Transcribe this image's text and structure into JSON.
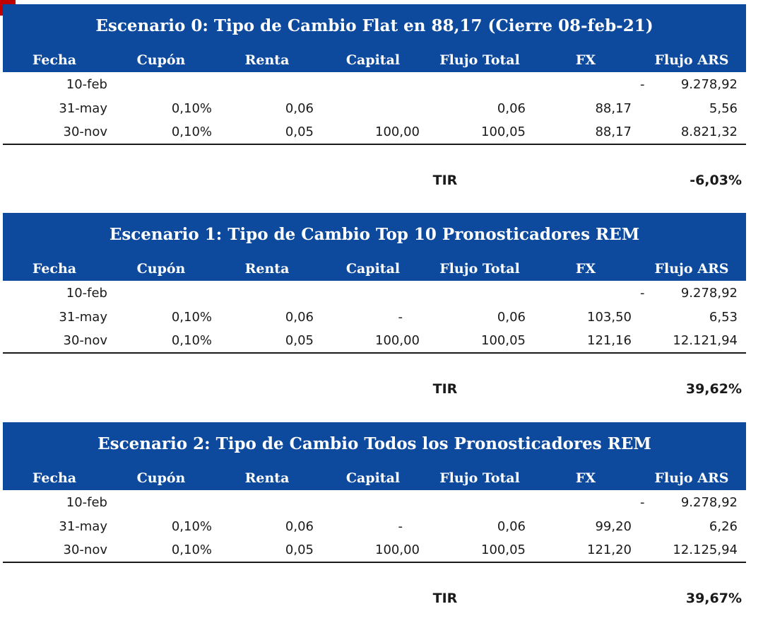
{
  "columns": [
    "Fecha",
    "Cupón",
    "Renta",
    "Capital",
    "Flujo Total",
    "FX",
    "Flujo ARS"
  ],
  "tir_label": "TIR",
  "scenarios": [
    {
      "title": "Escenario 0: Tipo de Cambio Flat en 88,17 (Cierre 08-feb-21)",
      "rows": [
        {
          "fecha": "10-feb",
          "cupon": "",
          "renta": "",
          "capital": "",
          "flujo_total": "",
          "fx": "",
          "ars_sign": "-",
          "flujo_ars": "9.278,92"
        },
        {
          "fecha": "31-may",
          "cupon": "0,10%",
          "renta": "0,06",
          "capital": "",
          "flujo_total": "0,06",
          "fx": "88,17",
          "ars_sign": "",
          "flujo_ars": "5,56"
        },
        {
          "fecha": "30-nov",
          "cupon": "0,10%",
          "renta": "0,05",
          "capital": "100,00",
          "flujo_total": "100,05",
          "fx": "88,17",
          "ars_sign": "",
          "flujo_ars": "8.821,32"
        }
      ],
      "tir": "-6,03%"
    },
    {
      "title": "Escenario 1: Tipo de Cambio Top 10 Pronosticadores REM",
      "rows": [
        {
          "fecha": "10-feb",
          "cupon": "",
          "renta": "",
          "capital": "",
          "flujo_total": "",
          "fx": "",
          "ars_sign": "-",
          "flujo_ars": "9.278,92"
        },
        {
          "fecha": "31-may",
          "cupon": "0,10%",
          "renta": "0,06",
          "capital": "-",
          "flujo_total": "0,06",
          "fx": "103,50",
          "ars_sign": "",
          "flujo_ars": "6,53"
        },
        {
          "fecha": "30-nov",
          "cupon": "0,10%",
          "renta": "0,05",
          "capital": "100,00",
          "flujo_total": "100,05",
          "fx": "121,16",
          "ars_sign": "",
          "flujo_ars": "12.121,94"
        }
      ],
      "tir": "39,62%"
    },
    {
      "title": "Escenario 2: Tipo de Cambio Todos los Pronosticadores REM",
      "rows": [
        {
          "fecha": "10-feb",
          "cupon": "",
          "renta": "",
          "capital": "",
          "flujo_total": "",
          "fx": "",
          "ars_sign": "-",
          "flujo_ars": "9.278,92"
        },
        {
          "fecha": "31-may",
          "cupon": "0,10%",
          "renta": "0,06",
          "capital": "-",
          "flujo_total": "0,06",
          "fx": "99,20",
          "ars_sign": "",
          "flujo_ars": "6,26"
        },
        {
          "fecha": "30-nov",
          "cupon": "0,10%",
          "renta": "0,05",
          "capital": "100,00",
          "flujo_total": "100,05",
          "fx": "121,20",
          "ars_sign": "",
          "flujo_ars": "12.125,94"
        }
      ],
      "tir": "39,67%"
    }
  ],
  "colors": {
    "header_band": "#0d4a9e",
    "corner_mark": "#c00000"
  }
}
